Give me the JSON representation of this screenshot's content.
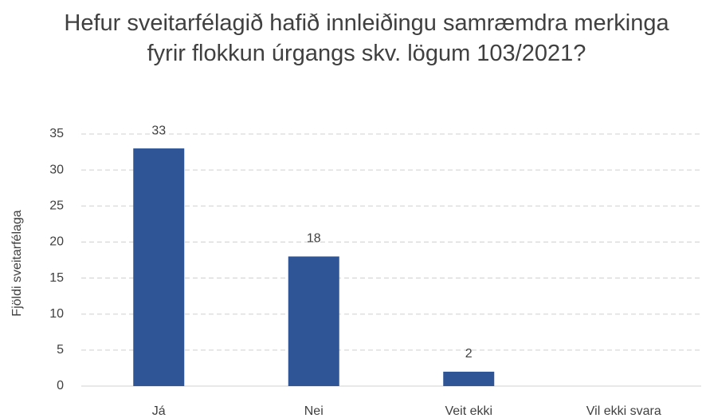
{
  "chart_data": {
    "type": "bar",
    "title": "Hefur sveitarfélagið hafið innleiðingu samræmdra merkinga fyrir flokkun úrgangs skv. lögum 103/2021?",
    "y_label": "Fjöldi sveitarfélaga",
    "categories": [
      "Já",
      "Nei",
      "Veit ekki",
      "Vil ekki svara"
    ],
    "values": [
      33,
      18,
      2,
      null
    ],
    "color": "#2f5597",
    "ylim": [
      0,
      35
    ],
    "yticks": [
      0,
      5,
      10,
      15,
      20,
      25,
      30,
      35
    ],
    "grid": true
  }
}
